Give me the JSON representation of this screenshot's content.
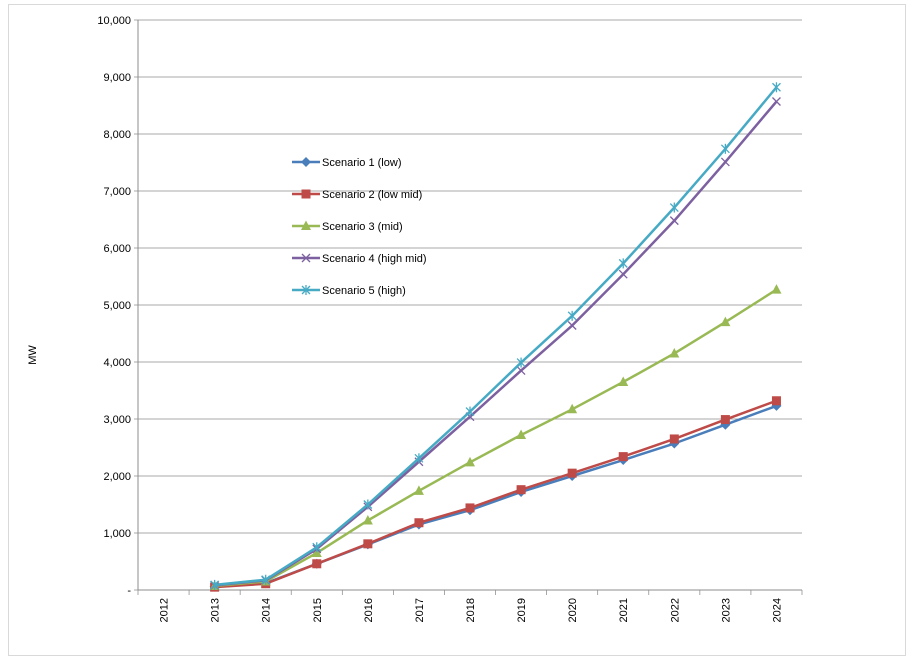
{
  "chart_data": {
    "type": "line",
    "title": "",
    "xlabel": "",
    "ylabel": "MW",
    "categories": [
      "2012",
      "2013",
      "2014",
      "2015",
      "2016",
      "2017",
      "2018",
      "2019",
      "2020",
      "2021",
      "2022",
      "2023",
      "2024"
    ],
    "ylim": [
      0,
      10000
    ],
    "y_ticks": [
      0,
      1000,
      2000,
      3000,
      4000,
      5000,
      6000,
      7000,
      8000,
      9000,
      10000
    ],
    "y_tick_labels": [
      "-",
      "1,000",
      "2,000",
      "3,000",
      "4,000",
      "5,000",
      "6,000",
      "7,000",
      "8,000",
      "9,000",
      "10,000"
    ],
    "grid": "horizontal",
    "legend_position": "inside-left",
    "series": [
      {
        "name": "Scenario 1 (low)",
        "color": "#4a7ebb",
        "marker": "diamond",
        "values": [
          null,
          60,
          120,
          460,
          800,
          1150,
          1400,
          1720,
          2000,
          2280,
          2570,
          2900,
          3230
        ]
      },
      {
        "name": "Scenario 2 (low mid)",
        "color": "#be4b48",
        "marker": "square",
        "values": [
          null,
          50,
          110,
          460,
          810,
          1180,
          1440,
          1760,
          2050,
          2340,
          2650,
          2990,
          3320
        ]
      },
      {
        "name": "Scenario 3 (mid)",
        "color": "#98b954",
        "marker": "triangle",
        "values": [
          null,
          70,
          150,
          650,
          1220,
          1740,
          2240,
          2720,
          3170,
          3650,
          4150,
          4700,
          5270
        ]
      },
      {
        "name": "Scenario 4 (high mid)",
        "color": "#7d60a0",
        "marker": "x",
        "values": [
          null,
          80,
          170,
          720,
          1460,
          2250,
          3040,
          3850,
          4640,
          5540,
          6480,
          7510,
          8570
        ]
      },
      {
        "name": "Scenario 5 (high)",
        "color": "#46aac5",
        "marker": "star",
        "values": [
          null,
          90,
          180,
          750,
          1500,
          2310,
          3130,
          3990,
          4810,
          5730,
          6710,
          7740,
          8820
        ]
      }
    ]
  }
}
